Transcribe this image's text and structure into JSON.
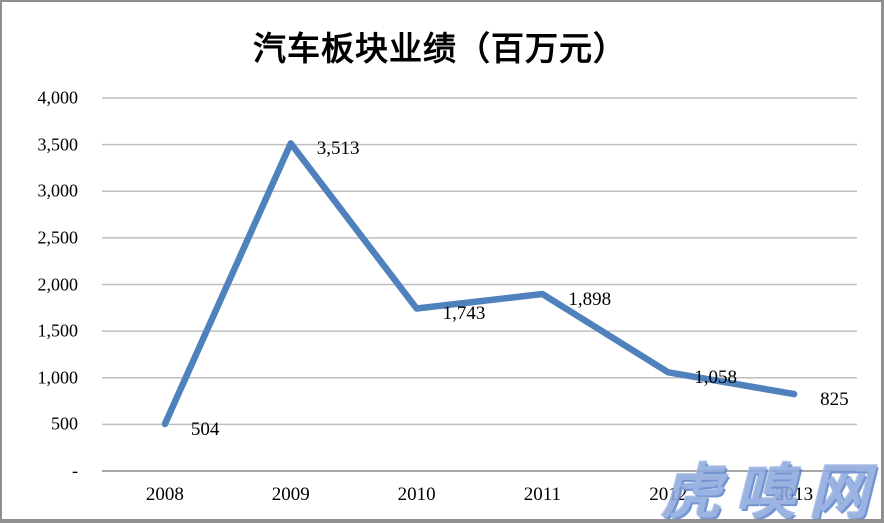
{
  "watermark": {
    "text": "虎嗅网",
    "color": "#8ea9dc"
  },
  "chart_data": {
    "type": "line",
    "title": "汽车板块业绩（百万元）",
    "categories": [
      "2008",
      "2009",
      "2010",
      "2011",
      "2012",
      "2013"
    ],
    "values": [
      504,
      3513,
      1743,
      1898,
      1058,
      825
    ],
    "data_labels": [
      "504",
      "3,513",
      "1,743",
      "1,898",
      "1,058",
      "825"
    ],
    "xlabel": "",
    "ylabel": "",
    "ylim": [
      0,
      4000
    ],
    "y_tick_interval": 500,
    "y_ticks": [
      {
        "value": 4000,
        "label": "4,000"
      },
      {
        "value": 3500,
        "label": "3,500"
      },
      {
        "value": 3000,
        "label": "3,000"
      },
      {
        "value": 2500,
        "label": "2,500"
      },
      {
        "value": 2000,
        "label": "2,000"
      },
      {
        "value": 1500,
        "label": "1,500"
      },
      {
        "value": 1000,
        "label": "1,000"
      },
      {
        "value": 500,
        "label": "500"
      },
      {
        "value": 0,
        "label": "-"
      }
    ],
    "grid": true,
    "legend": "none",
    "data_label_position": "right",
    "line_color": "#4F81BD",
    "gridline_color": "#BFBFBF",
    "axis_line_color": "#A6A6A6"
  }
}
